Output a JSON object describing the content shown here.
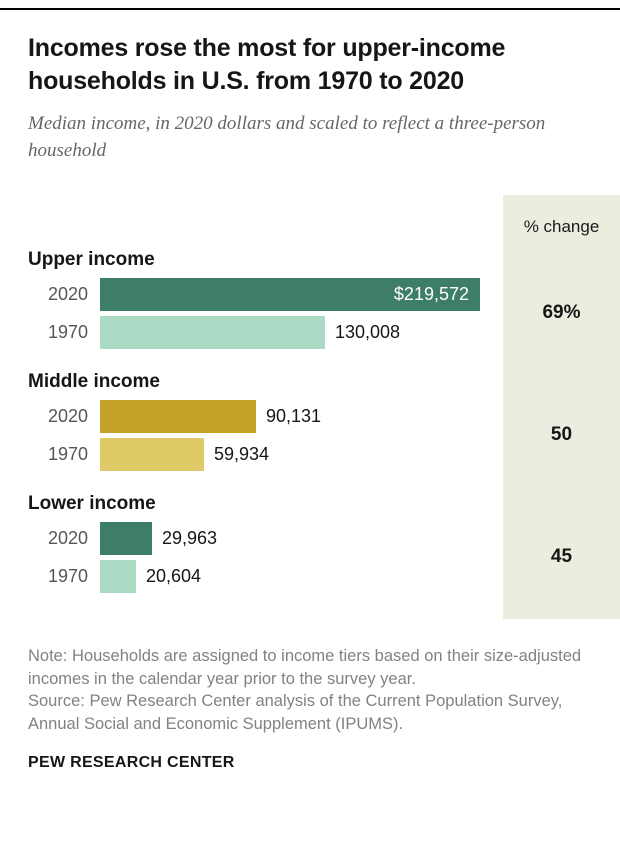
{
  "header": {
    "title": "Incomes rose the most for upper-income households in U.S. from 1970 to 2020",
    "subtitle": "Median income, in 2020 dollars and scaled to reflect a three-person household"
  },
  "chart_data": {
    "type": "bar",
    "orientation": "horizontal",
    "title": "Incomes rose the most for upper-income households in U.S. from 1970 to 2020",
    "unit": "2020 dollars, scaled to a three-person household",
    "max_value": 219572,
    "pct_change_header": "% change",
    "years": [
      "2020",
      "1970"
    ],
    "groups": [
      {
        "label": "Upper income",
        "pct_change": "69%",
        "bars": [
          {
            "year": "2020",
            "value": 219572,
            "display": "$219,572",
            "color": "#3d7d6a",
            "label_inside": true
          },
          {
            "year": "1970",
            "value": 130008,
            "display": "130,008",
            "color": "#abdbc5",
            "label_inside": false
          }
        ]
      },
      {
        "label": "Middle income",
        "pct_change": "50",
        "bars": [
          {
            "year": "2020",
            "value": 90131,
            "display": "90,131",
            "color": "#c5a128",
            "label_inside": false
          },
          {
            "year": "1970",
            "value": 59934,
            "display": "59,934",
            "color": "#e0c967",
            "label_inside": false
          }
        ]
      },
      {
        "label": "Lower income",
        "pct_change": "45",
        "bars": [
          {
            "year": "2020",
            "value": 29963,
            "display": "29,963",
            "color": "#3d7d6a",
            "label_inside": false
          },
          {
            "year": "1970",
            "value": 20604,
            "display": "20,604",
            "color": "#abdbc5",
            "label_inside": false
          }
        ]
      }
    ],
    "colors": {
      "dark_green": "#3d7d6a",
      "light_green": "#abdbc5",
      "dark_gold": "#c5a128",
      "light_gold": "#e0c967",
      "panel_background": "#ededdf"
    },
    "legend_position": "none",
    "grid": false
  },
  "footer": {
    "note": "Note: Households are assigned to income tiers based on their size-adjusted incomes in the calendar year prior to the survey year.",
    "source": "Source: Pew Research Center analysis of the Current Population Survey, Annual Social and Economic Supplement (IPUMS).",
    "brand": "PEW RESEARCH CENTER"
  }
}
